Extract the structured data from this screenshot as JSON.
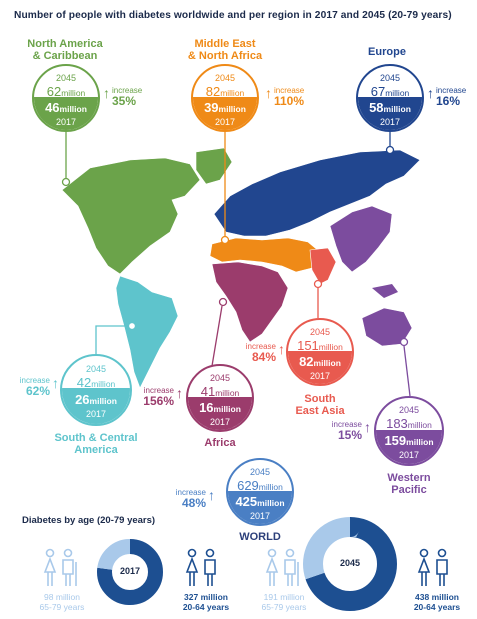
{
  "title": "Number of people with diabetes worldwide and per region in 2017 and 2045 (20-79 years)",
  "regions": [
    {
      "key": "nac",
      "name": "North America\n& Caribbean",
      "y2045": "62",
      "y2017": "46",
      "increase": "35%",
      "color": "#6ba34a"
    },
    {
      "key": "mena",
      "name": "Middle East\n& North Africa",
      "y2045": "82",
      "y2017": "39",
      "increase": "110%",
      "color": "#ef8a17"
    },
    {
      "key": "eur",
      "name": "Europe",
      "y2045": "67",
      "y2017": "58",
      "increase": "16%",
      "color": "#21468f"
    },
    {
      "key": "sca",
      "name": "South & Central\nAmerica",
      "y2045": "42",
      "y2017": "26",
      "increase": "62%",
      "color": "#5ec4cc"
    },
    {
      "key": "afr",
      "name": "Africa",
      "y2045": "41",
      "y2017": "16",
      "increase": "156%",
      "color": "#9b3c6c"
    },
    {
      "key": "sea",
      "name": "South\nEast Asia",
      "y2045": "151",
      "y2017": "82",
      "increase": "84%",
      "color": "#e85a4f"
    },
    {
      "key": "wp",
      "name": "Western\nPacific",
      "y2045": "183",
      "y2017": "159",
      "increase": "15%",
      "color": "#7c4c9e"
    },
    {
      "key": "world",
      "name": "WORLD",
      "y2045": "629",
      "y2017": "425",
      "increase": "48%",
      "color": "#4a7fc4"
    }
  ],
  "labels": {
    "year_2045": "2045",
    "year_2017": "2017",
    "million": "million",
    "increase": "increase"
  },
  "age_section": {
    "title": "Diabetes by age (20-79 years)",
    "donuts": [
      {
        "year": "2017",
        "older": "98 million\n65-79 years",
        "younger": "327 million\n20-64 years",
        "older_value": 98,
        "younger_value": 327
      },
      {
        "year": "2045",
        "older": "191 million\n65-79 years",
        "younger": "438 million\n20-64 years",
        "older_value": 191,
        "younger_value": 438
      }
    ]
  },
  "colors": {
    "dark_blue": "#1d4f91",
    "light_blue": "#a9c9ea",
    "navy": "#1b2a4a"
  }
}
